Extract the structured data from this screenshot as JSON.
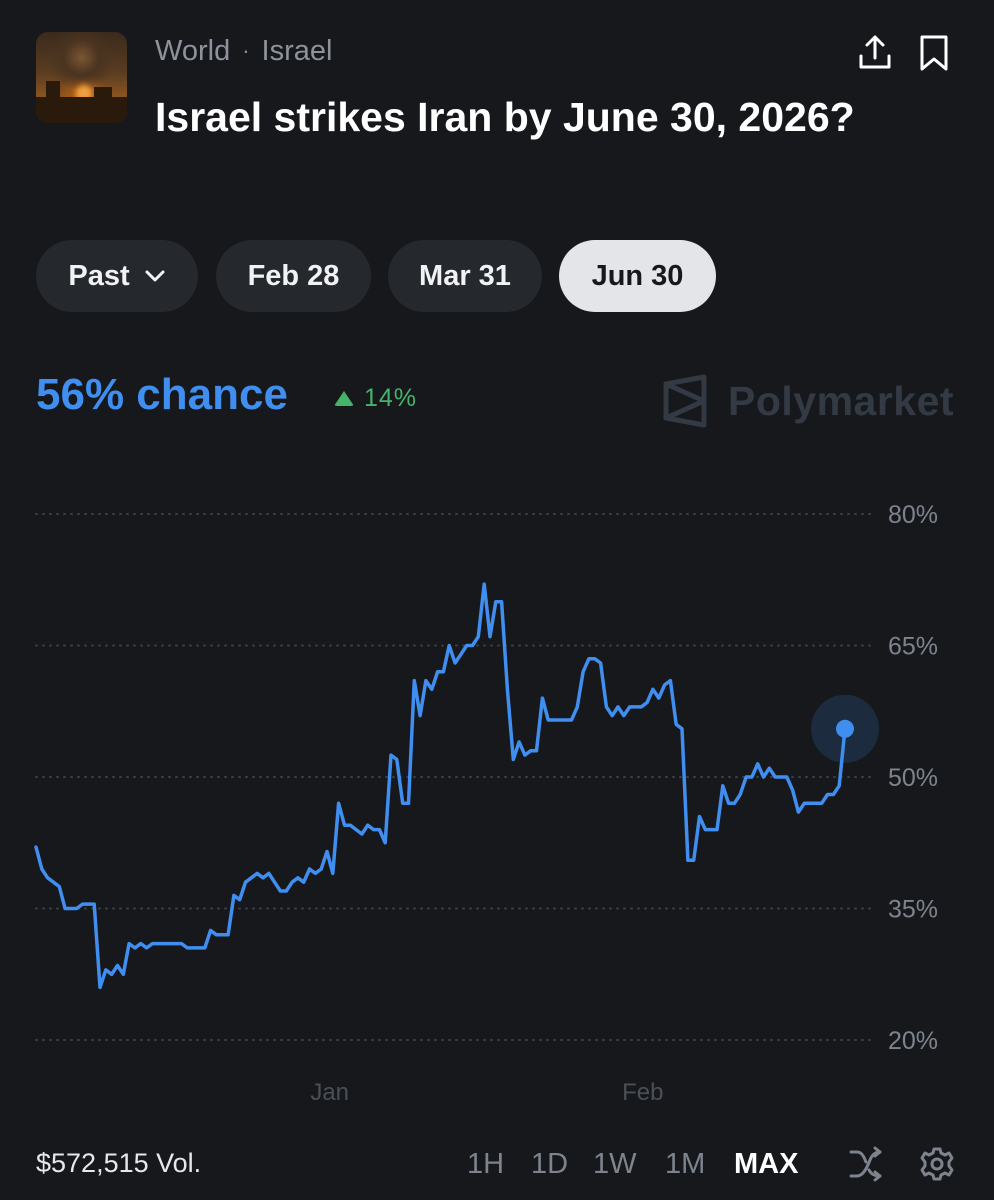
{
  "header": {
    "breadcrumb": [
      "World",
      "Israel"
    ],
    "breadcrumb_separator": "·",
    "title": "Israel strikes Iran by June 30, 2026?",
    "thumbnail_icon": "explosion-photo",
    "share_icon": "share-icon",
    "bookmark_icon": "bookmark-icon"
  },
  "date_tabs": {
    "items": [
      {
        "label": "Past",
        "has_dropdown": true
      },
      {
        "label": "Feb 28"
      },
      {
        "label": "Mar 31"
      },
      {
        "label": "Jun 30",
        "active": true
      }
    ]
  },
  "summary": {
    "chance_label": "56% chance",
    "delta_label": "14%",
    "delta_direction": "up",
    "brand": "Polymarket"
  },
  "colors": {
    "background": "#16181c",
    "accent": "#3f8ef0",
    "positive": "#45b36b",
    "pill": "#25282d",
    "pill_active": "#e3e5e8"
  },
  "chart_data": {
    "type": "line",
    "title": "",
    "xlabel": "",
    "ylabel": "",
    "y_unit": "%",
    "ylim": [
      20,
      80
    ],
    "y_ticks": [
      80,
      65,
      50,
      35,
      20
    ],
    "y_tick_labels": [
      "80%",
      "65%",
      "50%",
      "35%",
      "20%"
    ],
    "x_tick_labels": [
      {
        "label": "Jan",
        "at": 0.363
      },
      {
        "label": "Feb",
        "at": 0.75
      }
    ],
    "grid": "dotted-horizontal",
    "series": [
      {
        "values": [
          42,
          39.5,
          38.5,
          38,
          37.5,
          35,
          35,
          35,
          35.5,
          35.5,
          35.5,
          26,
          28,
          27.5,
          28.5,
          27.5,
          31,
          30.5,
          31,
          30.5,
          31,
          31,
          31,
          31,
          31,
          31,
          30.5,
          30.5,
          30.5,
          30.5,
          32.5,
          32,
          32,
          32,
          36.5,
          36,
          38,
          38.5,
          39,
          38.5,
          39,
          38,
          37,
          37,
          38,
          38.5,
          38,
          39.5,
          39,
          39.5,
          41.5,
          39,
          47,
          44.5,
          44.5,
          44,
          43.5,
          44.5,
          44,
          44,
          42.5,
          52.5,
          52,
          47,
          47,
          61,
          57,
          61,
          60,
          62,
          62,
          65,
          63,
          64,
          65,
          65,
          66,
          72,
          66,
          70,
          70,
          60,
          52,
          54,
          52.5,
          53,
          53,
          59,
          56.5,
          56.5,
          56.5,
          56.5,
          56.5,
          58,
          62,
          63.5,
          63.5,
          63,
          58,
          57,
          58,
          57,
          58,
          58,
          58,
          58.5,
          60,
          59,
          60.5,
          61,
          56,
          55.5,
          40.5,
          40.5,
          45.5,
          44,
          44,
          44,
          49,
          47,
          47,
          48,
          50,
          50,
          51.5,
          50,
          51,
          50,
          50,
          50,
          48.5,
          46,
          47,
          47,
          47,
          47,
          48,
          48,
          49,
          55.5
        ]
      }
    ],
    "current_value": 55.5
  },
  "footer": {
    "volume_label": "$572,515 Vol.",
    "timeframes": [
      {
        "label": "1H"
      },
      {
        "label": "1D"
      },
      {
        "label": "1W"
      },
      {
        "label": "1M"
      },
      {
        "label": "MAX",
        "active": true
      }
    ],
    "shuffle_icon": "shuffle-icon",
    "settings_icon": "gear-icon"
  }
}
